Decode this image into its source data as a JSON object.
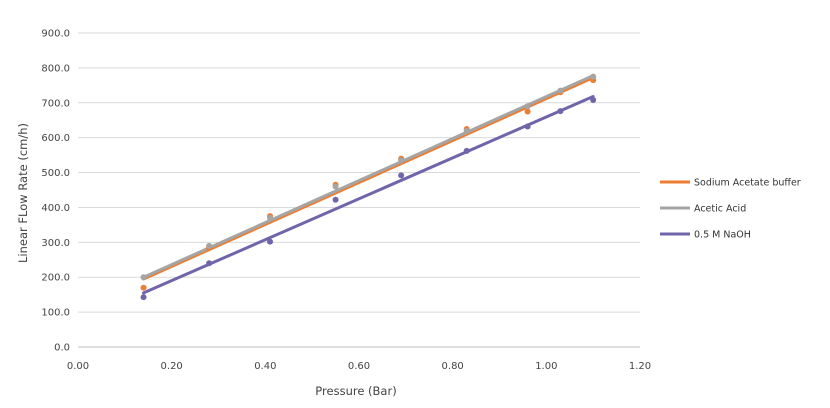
{
  "chart_data": {
    "type": "scatter",
    "xlabel": "Pressure (Bar)",
    "ylabel": "Linear FLow Rate (cm/h)",
    "xlim": [
      0,
      1.2
    ],
    "ylim": [
      0,
      900
    ],
    "xticks": [
      "0.00",
      "0.20",
      "0.40",
      "0.60",
      "0.80",
      "1.00",
      "1.20"
    ],
    "yticks": [
      "0.0",
      "100.0",
      "200.0",
      "300.0",
      "400.0",
      "500.0",
      "600.0",
      "700.0",
      "800.0",
      "900.0"
    ],
    "grid": "horizontal",
    "legend_position": "right",
    "trendlines": "linear",
    "series": [
      {
        "name": "Sodium Acetate buffer",
        "color": "#ED7D31",
        "points": [
          [
            0.14,
            170
          ],
          [
            0.28,
            285
          ],
          [
            0.41,
            375
          ],
          [
            0.55,
            465
          ],
          [
            0.69,
            540
          ],
          [
            0.83,
            625
          ],
          [
            0.96,
            675
          ],
          [
            1.03,
            730
          ],
          [
            1.1,
            765
          ]
        ],
        "trend": [
          [
            0.14,
            195
          ],
          [
            1.1,
            772
          ]
        ]
      },
      {
        "name": "Acetic Acid",
        "color": "#A5A5A5",
        "points": [
          [
            0.14,
            200
          ],
          [
            0.28,
            290
          ],
          [
            0.41,
            370
          ],
          [
            0.55,
            460
          ],
          [
            0.69,
            535
          ],
          [
            0.83,
            620
          ],
          [
            0.96,
            690
          ],
          [
            1.03,
            735
          ],
          [
            1.1,
            775
          ]
        ],
        "trend": [
          [
            0.14,
            200
          ],
          [
            1.1,
            778
          ]
        ]
      },
      {
        "name": "0.5 M NaOH",
        "color": "#7164AB",
        "points": [
          [
            0.14,
            143
          ],
          [
            0.28,
            240
          ],
          [
            0.41,
            302
          ],
          [
            0.55,
            422
          ],
          [
            0.69,
            492
          ],
          [
            0.83,
            562
          ],
          [
            0.96,
            632
          ],
          [
            1.03,
            676
          ],
          [
            1.1,
            708
          ]
        ],
        "trend": [
          [
            0.14,
            155
          ],
          [
            1.1,
            718
          ]
        ]
      }
    ]
  }
}
